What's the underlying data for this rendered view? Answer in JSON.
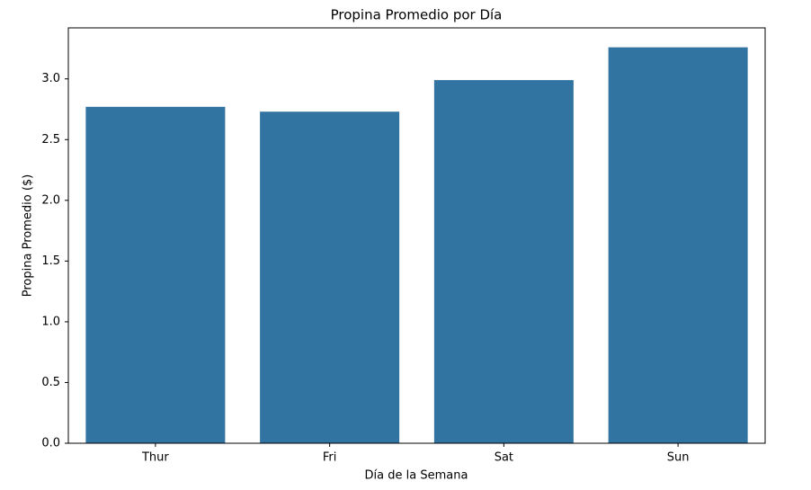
{
  "chart_data": {
    "type": "bar",
    "title": "Propina Promedio por Día",
    "x_label": "Día de la Semana",
    "y_label": "Propina Promedio ($)",
    "categories": [
      "Thur",
      "Fri",
      "Sat",
      "Sun"
    ],
    "values": [
      2.77,
      2.73,
      2.99,
      3.26
    ],
    "color": "#3274a1",
    "ylim": [
      0,
      3.42
    ],
    "yticks": [
      {
        "value": 0,
        "label": "0.0"
      },
      {
        "value": 0.5,
        "label": "0.5"
      },
      {
        "value": 1,
        "label": "1.0"
      },
      {
        "value": 1.5,
        "label": "1.5"
      },
      {
        "value": 2,
        "label": "2.0"
      },
      {
        "value": 2.5,
        "label": "2.5"
      },
      {
        "value": 3,
        "label": "3.0"
      }
    ],
    "grid": false
  }
}
